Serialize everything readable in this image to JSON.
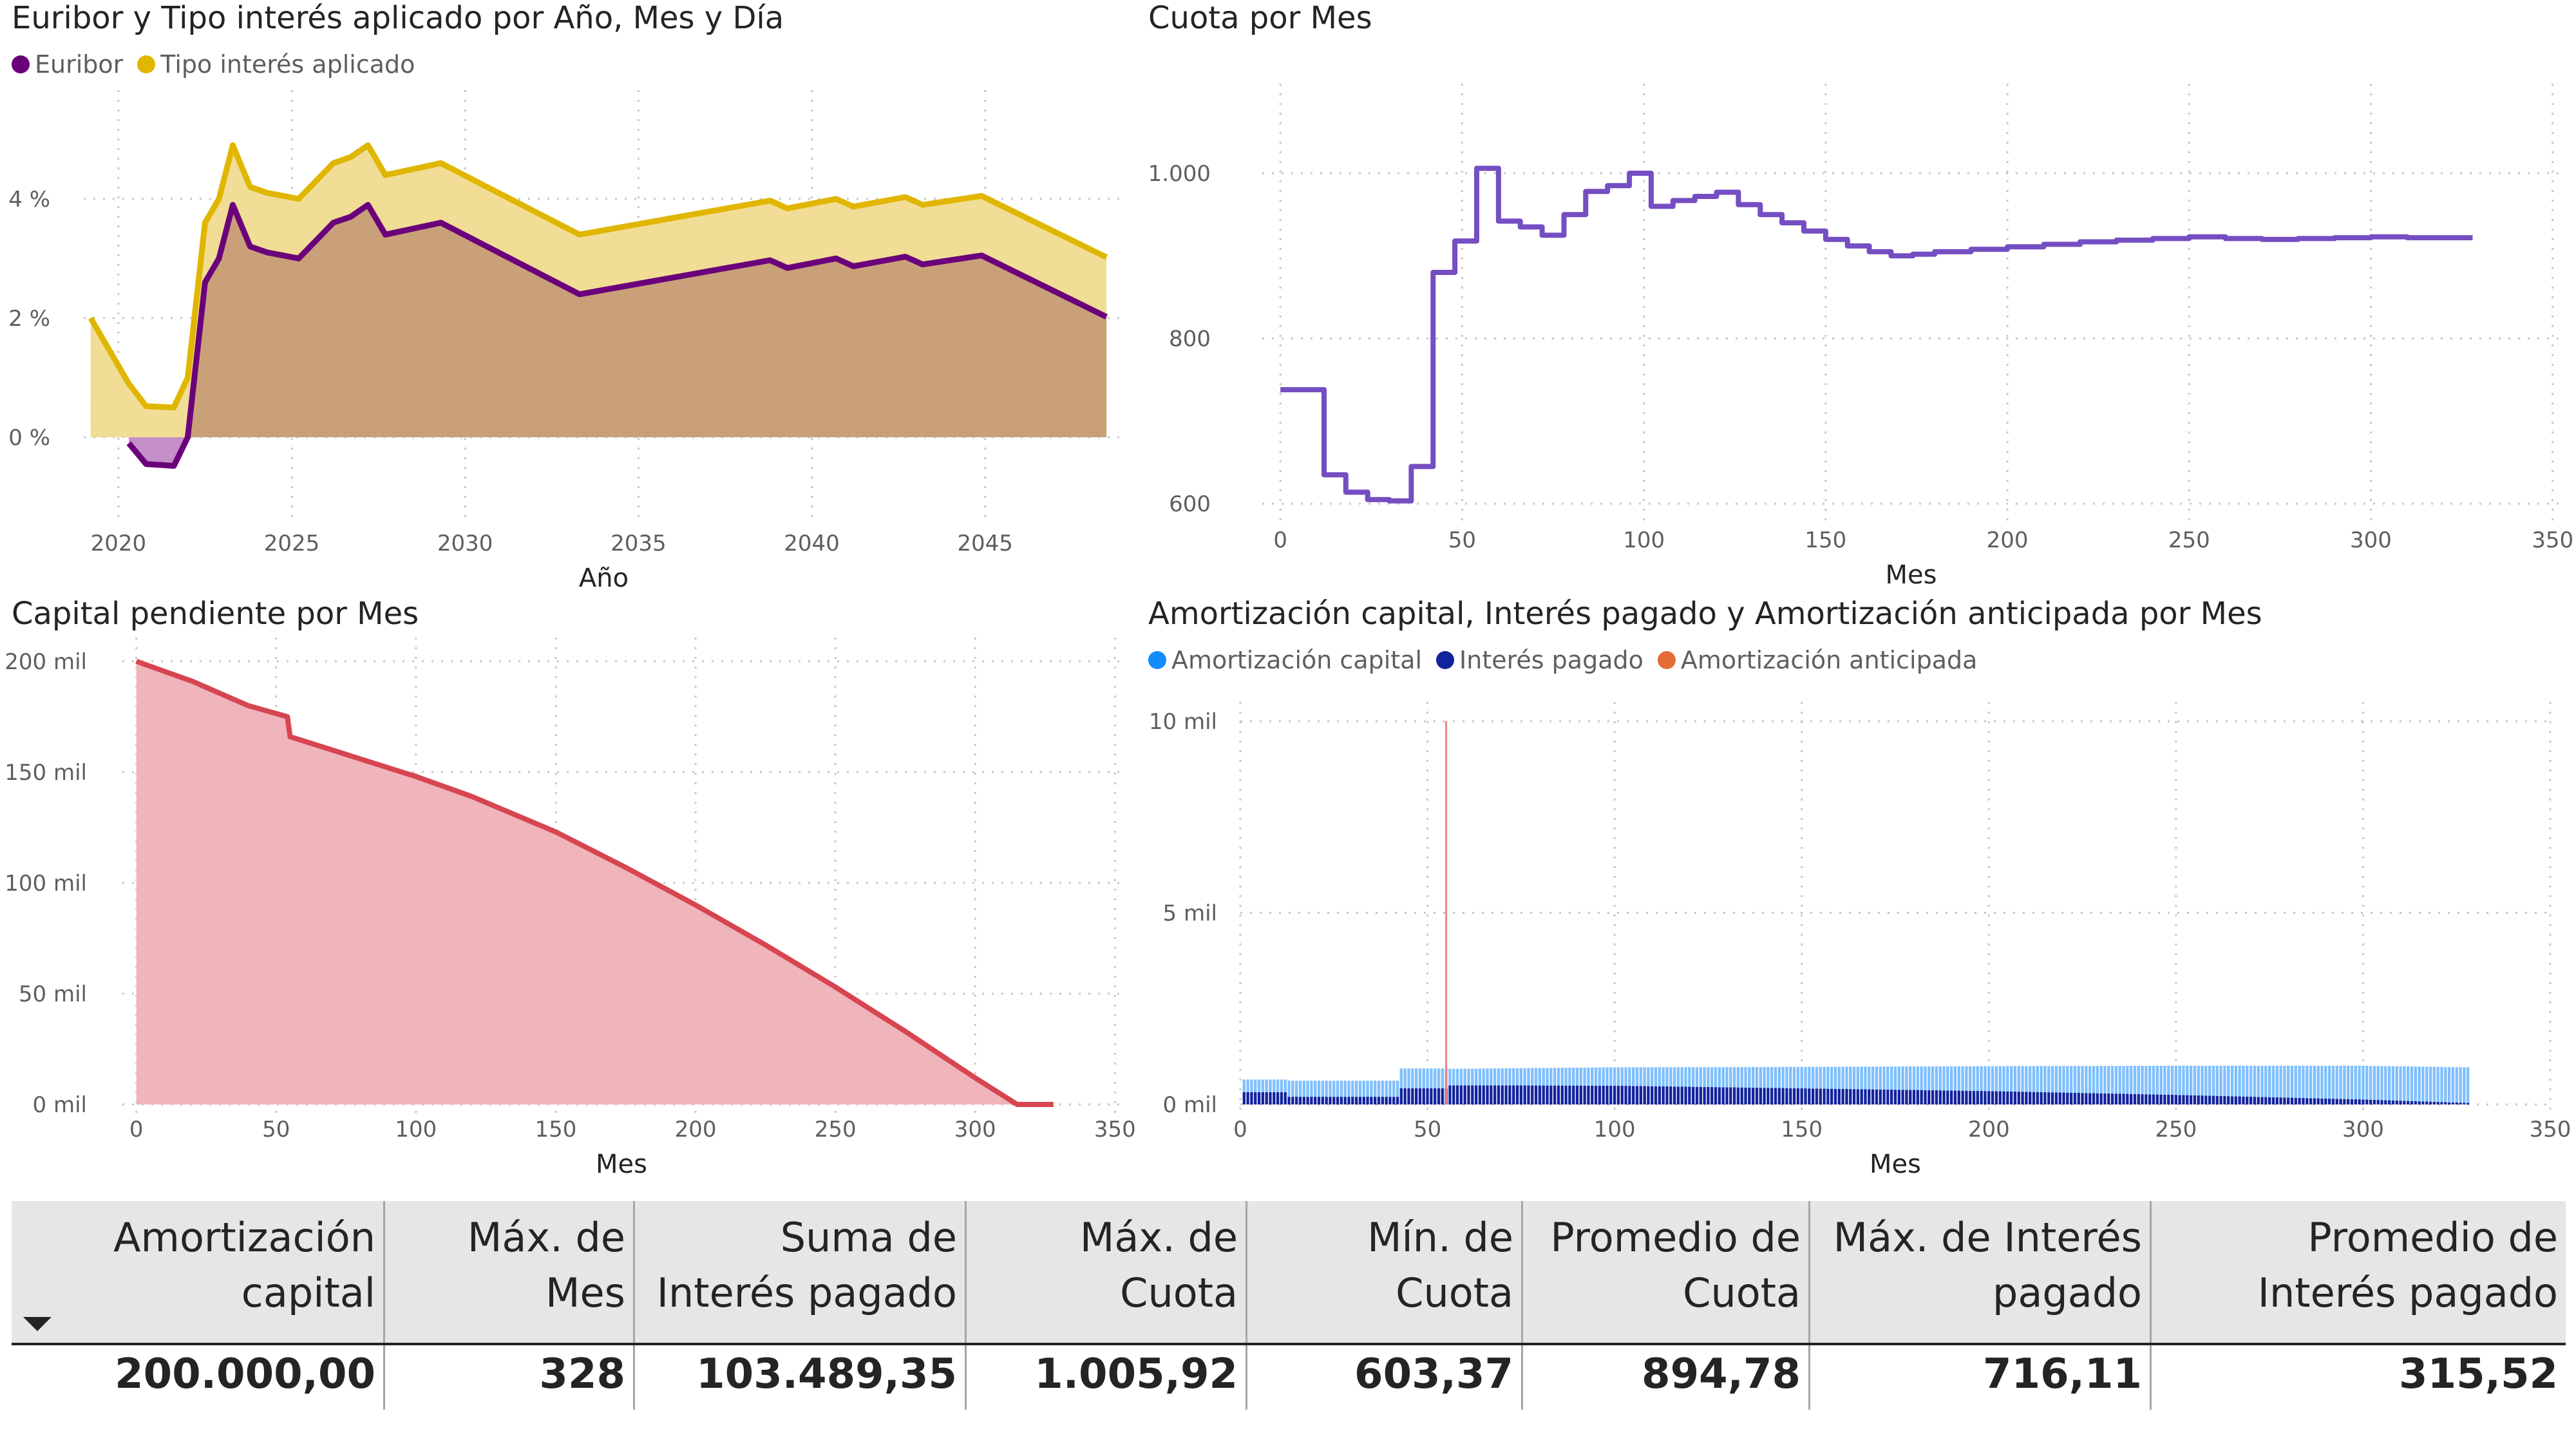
{
  "charts": {
    "c1": {
      "title": "Euribor y Tipo interés aplicado por Año, Mes y Día",
      "legend": [
        {
          "label": "Euribor",
          "color": "#6b007b"
        },
        {
          "label": "Tipo interés aplicado",
          "color": "#e0b600"
        }
      ]
    },
    "c2": {
      "title": "Cuota por Mes"
    },
    "c3": {
      "title": "Capital pendiente por Mes"
    },
    "c4": {
      "title": "Amortización capital, Interés pagado y Amortización anticipada por Mes",
      "legend": [
        {
          "label": "Amortización capital",
          "color": "#118dff"
        },
        {
          "label": "Interés pagado",
          "color": "#12239e"
        },
        {
          "label": "Amortización anticipada",
          "color": "#e66c37"
        }
      ]
    }
  },
  "table": {
    "headers": [
      "Amortización capital",
      "Máx. de Mes",
      "Suma de Interés pagado",
      "Máx. de Cuota",
      "Mín. de Cuota",
      "Promedio de Cuota",
      "Máx. de Interés pagado",
      "Promedio de Interés pagado"
    ],
    "values": [
      "200.000,00",
      "328",
      "103.489,35",
      "1.005,92",
      "603,37",
      "894,78",
      "716,11",
      "315,52"
    ]
  },
  "chart_data": [
    {
      "type": "area",
      "title": "Euribor y Tipo interés aplicado por Año, Mes y Día",
      "xlabel": "Año",
      "ylabel": "",
      "xlim": [
        2019,
        2049
      ],
      "ylim": [
        -1.2,
        5.5
      ],
      "xticks": [
        2020,
        2025,
        2030,
        2035,
        2040,
        2045
      ],
      "xtick_labels": [
        "2020",
        "2025",
        "2030",
        "2035",
        "2040",
        "2045"
      ],
      "yticks": [
        0,
        2,
        4
      ],
      "ytick_labels": [
        "0 %",
        "2 %",
        "4 %"
      ],
      "legend": "top-left",
      "grid": true,
      "series": [
        {
          "name": "Euribor",
          "color": "#6b007b",
          "x": [
            2020.3,
            2020.8,
            2021.6,
            2022.0,
            2022.5,
            2022.9,
            2023.3,
            2023.8,
            2024.3,
            2025.2,
            2026.2,
            2026.7,
            2027.2,
            2027.7,
            2029.3,
            2033.3,
            2038.8,
            2039.3,
            2040.7,
            2041.2,
            2042.7,
            2043.2,
            2044.9,
            2048.5
          ],
          "y": [
            -0.1,
            -0.45,
            -0.48,
            0.0,
            2.6,
            3.0,
            3.9,
            3.2,
            3.1,
            3.0,
            3.6,
            3.7,
            3.9,
            3.4,
            3.6,
            2.4,
            2.97,
            2.84,
            3.0,
            2.87,
            3.03,
            2.9,
            3.05,
            2.02
          ]
        },
        {
          "name": "Tipo interés aplicado",
          "color": "#e0b600",
          "x": [
            2019.2,
            2020.3,
            2020.8,
            2021.6,
            2022.0,
            2022.5,
            2022.9,
            2023.3,
            2023.8,
            2024.3,
            2025.2,
            2026.2,
            2026.7,
            2027.2,
            2027.7,
            2029.3,
            2033.3,
            2038.8,
            2039.3,
            2040.7,
            2041.2,
            2042.7,
            2043.2,
            2044.9,
            2048.5
          ],
          "y": [
            2.0,
            0.9,
            0.52,
            0.5,
            1.0,
            3.6,
            4.0,
            4.9,
            4.2,
            4.1,
            4.0,
            4.6,
            4.7,
            4.9,
            4.4,
            4.6,
            3.4,
            3.97,
            3.84,
            4.0,
            3.87,
            4.03,
            3.9,
            4.05,
            3.02
          ]
        }
      ]
    },
    {
      "type": "line",
      "title": "Cuota por Mes",
      "xlabel": "Mes",
      "ylabel": "",
      "xlim": [
        -5,
        352
      ],
      "ylim": [
        590,
        1085
      ],
      "xticks": [
        0,
        50,
        100,
        150,
        200,
        250,
        300,
        350
      ],
      "xtick_labels": [
        "0",
        "50",
        "100",
        "150",
        "200",
        "250",
        "300",
        "350"
      ],
      "yticks": [
        600,
        800,
        1000
      ],
      "ytick_labels": [
        "600",
        "800",
        "1.000"
      ],
      "grid": true,
      "series": [
        {
          "color": "#744ec2",
          "x": [
            0,
            12,
            12,
            18,
            18,
            24,
            24,
            30,
            30,
            36,
            36,
            42,
            42,
            48,
            48,
            54,
            54,
            60,
            60,
            66,
            66,
            72,
            72,
            78,
            78,
            84,
            84,
            90,
            90,
            96,
            96,
            102,
            102,
            108,
            108,
            114,
            114,
            120,
            120,
            126,
            126,
            132,
            132,
            138,
            138,
            144,
            144,
            150,
            150,
            156,
            156,
            162,
            162,
            168,
            168,
            174,
            174,
            180,
            180,
            190,
            190,
            200,
            200,
            210,
            210,
            220,
            220,
            230,
            230,
            240,
            240,
            250,
            250,
            260,
            260,
            270,
            270,
            280,
            280,
            290,
            290,
            300,
            300,
            310,
            310,
            328
          ],
          "y": [
            738,
            738,
            635,
            635,
            614,
            614,
            605,
            605,
            603.37,
            603.37,
            645,
            645,
            880,
            880,
            918,
            918,
            1005.92,
            1005.92,
            942,
            942,
            935,
            935,
            925,
            925,
            950,
            950,
            978,
            978,
            985,
            985,
            1000,
            1000,
            960,
            960,
            967,
            967,
            972,
            972,
            977,
            977,
            962,
            962,
            950,
            950,
            940,
            940,
            930,
            930,
            920,
            920,
            912,
            912,
            905,
            905,
            900,
            900,
            902,
            902,
            905,
            905,
            908,
            908,
            911,
            911,
            914,
            914,
            917,
            917,
            919,
            919,
            921,
            921,
            923,
            923,
            921,
            921,
            920,
            920,
            921,
            921,
            922,
            922,
            923,
            923,
            922,
            922
          ]
        }
      ]
    },
    {
      "type": "area",
      "title": "Capital pendiente por Mes",
      "xlabel": "Mes",
      "ylabel": "",
      "xlim": [
        -5,
        352
      ],
      "ylim": [
        0,
        202000
      ],
      "xticks": [
        0,
        50,
        100,
        150,
        200,
        250,
        300,
        350
      ],
      "xtick_labels": [
        "0",
        "50",
        "100",
        "150",
        "200",
        "250",
        "300",
        "350"
      ],
      "yticks": [
        0,
        50000,
        100000,
        150000,
        200000
      ],
      "ytick_labels": [
        "0 mil",
        "50 mil",
        "100 mil",
        "150 mil",
        "200 mil"
      ],
      "grid": true,
      "series": [
        {
          "color": "#d64550",
          "x": [
            0,
            20,
            40,
            54,
            55,
            80,
            100,
            120,
            150,
            175,
            200,
            225,
            250,
            275,
            300,
            315,
            328
          ],
          "y": [
            200000,
            191000,
            180000,
            175000,
            166000,
            156000,
            148000,
            139000,
            123000,
            107000,
            90000,
            72000,
            53000,
            33000,
            12000,
            0,
            0
          ]
        }
      ]
    },
    {
      "type": "bar",
      "title": "Amortización capital, Interés pagado y Amortización anticipada por Mes",
      "xlabel": "Mes",
      "ylabel": "",
      "xlim": [
        0,
        350
      ],
      "ylim": [
        0,
        10000
      ],
      "xticks": [
        0,
        50,
        100,
        150,
        200,
        250,
        300,
        350
      ],
      "xtick_labels": [
        "0",
        "50",
        "100",
        "150",
        "200",
        "250",
        "300",
        "350"
      ],
      "yticks": [
        0,
        5000,
        10000
      ],
      "ytick_labels": [
        "0 mil",
        "5 mil",
        "10 mil"
      ],
      "legend": "top-left",
      "grid": true,
      "series": [
        {
          "name": "Amortización capital",
          "color": "#118dff",
          "note_range": "months 1-328",
          "x": [
            1,
            12,
            13,
            42,
            43,
            55,
            56,
            100,
            150,
            200,
            250,
            300,
            328
          ],
          "y": [
            330,
            330,
            420,
            420,
            520,
            520,
            430,
            480,
            560,
            650,
            760,
            880,
            930
          ]
        },
        {
          "name": "Interés pagado",
          "color": "#12239e",
          "x": [
            1,
            12,
            13,
            42,
            43,
            55,
            56,
            100,
            150,
            200,
            250,
            300,
            328
          ],
          "y": [
            320,
            320,
            200,
            200,
            420,
            420,
            500,
            490,
            420,
            350,
            250,
            130,
            40
          ]
        },
        {
          "name": "Amortización anticipada",
          "color": "#e66c37",
          "x": [
            55
          ],
          "y": [
            10000
          ]
        }
      ]
    }
  ]
}
